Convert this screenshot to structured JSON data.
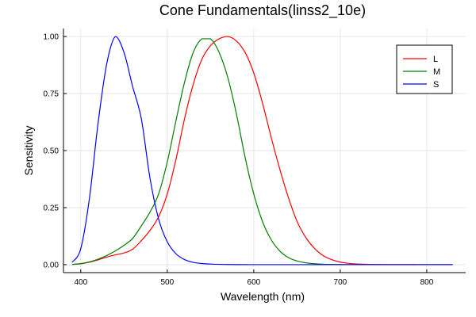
{
  "chart_data": {
    "type": "line",
    "title": "Cone Fundamentals(linss2_10e)",
    "xlabel": "Wavelength (nm)",
    "ylabel": "Sensitivity",
    "xlim": [
      380,
      845
    ],
    "ylim": [
      -0.035,
      1.035
    ],
    "grid": true,
    "legend_position": "top-right",
    "x_ticks": [
      {
        "value": 400,
        "label": "400"
      },
      {
        "value": 500,
        "label": "500"
      },
      {
        "value": 600,
        "label": "600"
      },
      {
        "value": 700,
        "label": "700"
      },
      {
        "value": 800,
        "label": "800"
      }
    ],
    "y_ticks": [
      {
        "value": 0.0,
        "label": "0.00"
      },
      {
        "value": 0.25,
        "label": "0.25"
      },
      {
        "value": 0.5,
        "label": "0.50"
      },
      {
        "value": 0.75,
        "label": "0.75"
      },
      {
        "value": 1.0,
        "label": "1.00"
      }
    ],
    "x": [
      390,
      400,
      410,
      420,
      430,
      440,
      450,
      460,
      470,
      480,
      490,
      500,
      510,
      520,
      530,
      540,
      550,
      560,
      570,
      580,
      590,
      600,
      610,
      620,
      630,
      640,
      650,
      660,
      670,
      680,
      690,
      700,
      710,
      720,
      730,
      740,
      750,
      760,
      770,
      780,
      790,
      800,
      810,
      820,
      830
    ],
    "series": [
      {
        "name": "L",
        "color": "#ff0000",
        "values": [
          0.001,
          0.004,
          0.011,
          0.021,
          0.033,
          0.043,
          0.051,
          0.068,
          0.105,
          0.15,
          0.21,
          0.31,
          0.46,
          0.64,
          0.79,
          0.9,
          0.96,
          0.99,
          1.0,
          0.98,
          0.93,
          0.84,
          0.71,
          0.56,
          0.42,
          0.295,
          0.19,
          0.12,
          0.072,
          0.04,
          0.022,
          0.011,
          0.0055,
          0.0027,
          0.0014,
          0.0007,
          0.0004,
          0.0002,
          0.0001,
          0.0001,
          0.0,
          0.0,
          0.0,
          0.0,
          0.0
        ]
      },
      {
        "name": "M",
        "color": "#007f00",
        "values": [
          0.001,
          0.004,
          0.012,
          0.024,
          0.04,
          0.06,
          0.085,
          0.115,
          0.17,
          0.23,
          0.31,
          0.45,
          0.63,
          0.8,
          0.93,
          0.99,
          0.99,
          0.93,
          0.82,
          0.66,
          0.47,
          0.31,
          0.19,
          0.11,
          0.06,
          0.031,
          0.016,
          0.008,
          0.004,
          0.002,
          0.001,
          0.0005,
          0.0002,
          0.0001,
          0.0,
          0.0,
          0.0,
          0.0,
          0.0,
          0.0,
          0.0,
          0.0,
          0.0,
          0.0,
          0.0
        ]
      },
      {
        "name": "S",
        "color": "#0000ff",
        "values": [
          0.01,
          0.07,
          0.29,
          0.62,
          0.88,
          1.0,
          0.93,
          0.78,
          0.64,
          0.38,
          0.2,
          0.1,
          0.048,
          0.022,
          0.01,
          0.005,
          0.0025,
          0.0012,
          0.0006,
          0.0003,
          0.0001,
          0.0,
          0.0,
          0.0,
          0.0,
          0.0,
          0.0,
          0.0,
          0.0,
          0.0,
          0.0,
          0.0,
          0.0,
          0.0,
          0.0,
          0.0,
          0.0,
          0.0,
          0.0,
          0.0,
          0.0,
          0.0,
          0.0,
          0.0,
          0.0
        ]
      }
    ]
  }
}
